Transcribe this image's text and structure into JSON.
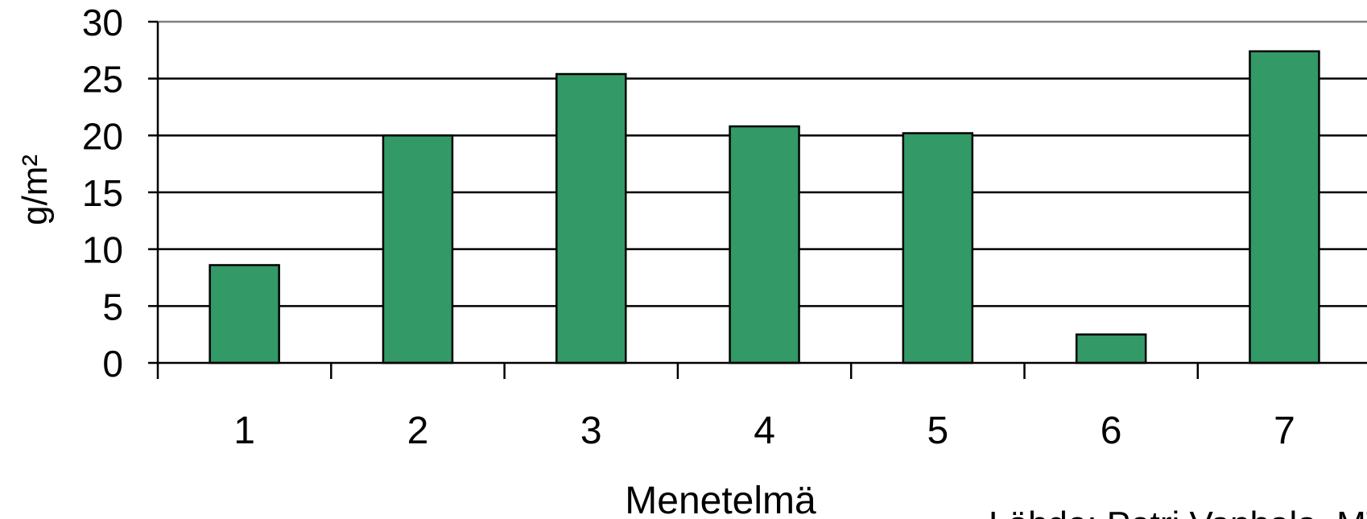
{
  "chart_data": {
    "type": "bar",
    "categories": [
      "1",
      "2",
      "3",
      "4",
      "5",
      "6",
      "7"
    ],
    "values": [
      8.6,
      20.0,
      25.4,
      20.8,
      20.2,
      2.5,
      27.4
    ],
    "title": "",
    "xlabel": "Menetelmä",
    "ylabel": "g/m²",
    "ylim": [
      0,
      30
    ],
    "yticks": [
      "0",
      "5",
      "10",
      "15",
      "20",
      "25",
      "30"
    ],
    "grid": true,
    "legend": "none",
    "source": "Lähde: Petri Vanhala, MTT"
  },
  "colors": {
    "bar_fill": "#339966",
    "bar_stroke": "#000000",
    "gridline": "#000000",
    "top_border": "#808080"
  }
}
